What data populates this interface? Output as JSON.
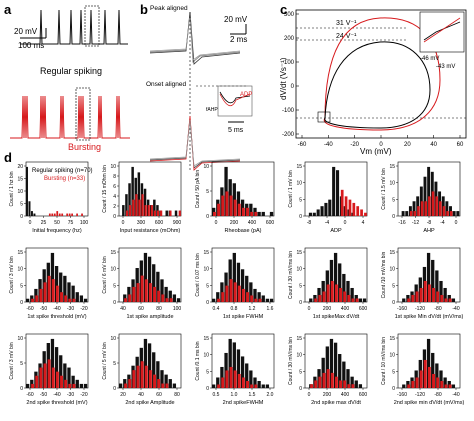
{
  "panels": {
    "a": {
      "letter": "a",
      "scale_v": "20 mV",
      "scale_t": "100 ms",
      "label_regular": "Regular spiking",
      "label_burst": "Bursting",
      "color_regular": "#111111",
      "color_burst": "#d7191c"
    },
    "b": {
      "letter": "b",
      "peak_label": "Peak aligned",
      "onset_label": "Onset aligned",
      "scale_v": "20 mV",
      "scale_t1": "2 ms",
      "scale_t2": "5 ms",
      "adp_label": "ADP",
      "fahp_label": "fAHP"
    },
    "c": {
      "letter": "c",
      "xlabel": "Vm (mV)",
      "ylabel": "dV/dt (Vs⁻¹)",
      "xticks": [
        "-60",
        "-40",
        "-20",
        "0",
        "20",
        "40",
        "60"
      ],
      "yticks": [
        "-200",
        "-100",
        "0",
        "100",
        "200",
        "300"
      ],
      "thr_red": "31 V⁻¹",
      "thr_black": "24 V⁻¹",
      "inset_v1": "-46 mV",
      "inset_v2": "-43 mV"
    },
    "d": {
      "letter": "d",
      "legend_regular": "Regular spiking (n=70)",
      "legend_burst": "Bursting (n=33)"
    }
  },
  "chart_data": [
    {
      "type": "bar",
      "id": "h1",
      "xlabel": "Initial frequency (hz)",
      "ylabel": "Count / 1 hz bin",
      "xticks": [
        "0",
        "25",
        "50",
        "75",
        "100"
      ],
      "yticks": [
        "0",
        "5",
        "10",
        "15",
        "20"
      ],
      "series": [
        {
          "name": "Regular spiking",
          "values": [
            20,
            6,
            2,
            1,
            0,
            0,
            0,
            0,
            0,
            0,
            0,
            0,
            0,
            0,
            0,
            0,
            0,
            0,
            0,
            0,
            0,
            0,
            0,
            0,
            0
          ]
        },
        {
          "name": "Bursting",
          "values": [
            0,
            0,
            0,
            0,
            0,
            0,
            0,
            0,
            0,
            1,
            1,
            1,
            2,
            1,
            1,
            0,
            1,
            1,
            1,
            0,
            1,
            0,
            1,
            0,
            0
          ]
        }
      ]
    },
    {
      "type": "bar",
      "id": "h2",
      "xlabel": "Input resistance (mOhm)",
      "ylabel": "Count / 15 mOhm bin",
      "xticks": [
        "0",
        "300",
        "600",
        "900"
      ],
      "yticks": [
        "0",
        "2",
        "4",
        "6",
        "8",
        "10"
      ],
      "series": [
        {
          "name": "Regular spiking",
          "values": [
            0,
            2,
            4,
            6,
            9,
            7,
            8,
            6,
            5,
            3,
            2,
            3,
            2,
            1,
            0,
            1,
            1,
            0,
            1,
            0
          ]
        },
        {
          "name": "Bursting",
          "values": [
            0,
            0,
            1,
            2,
            3,
            4,
            3,
            4,
            2,
            2,
            2,
            1,
            1,
            1,
            0,
            0,
            1,
            0,
            0,
            1
          ]
        }
      ]
    },
    {
      "type": "bar",
      "id": "h3",
      "xlabel": "Rheobase (pA)",
      "ylabel": "Count / 50 pA bin",
      "xticks": [
        "0",
        "200",
        "400",
        "600"
      ],
      "yticks": [
        "0",
        "5",
        "10"
      ],
      "series": [
        {
          "name": "Regular spiking",
          "values": [
            2,
            4,
            7,
            12,
            9,
            8,
            6,
            4,
            3,
            3,
            2,
            1,
            1,
            0,
            1
          ]
        },
        {
          "name": "Bursting",
          "values": [
            1,
            3,
            5,
            6,
            5,
            4,
            3,
            2,
            2,
            1,
            1,
            0,
            0,
            0,
            0
          ]
        }
      ]
    },
    {
      "type": "bar",
      "id": "h4",
      "xlabel": "ADP",
      "ylabel": "Count / 1 mV bin",
      "xticks": [
        "-8",
        "-4",
        "0",
        "4"
      ],
      "yticks": [
        "0",
        "5",
        "10",
        "15"
      ],
      "series": [
        {
          "name": "Regular spiking",
          "values": [
            0,
            1,
            1,
            2,
            3,
            4,
            5,
            15,
            14,
            6,
            3,
            2,
            1,
            0,
            0,
            0
          ]
        },
        {
          "name": "Bursting",
          "values": [
            0,
            0,
            0,
            0,
            0,
            0,
            0,
            0,
            0,
            8,
            6,
            5,
            4,
            3,
            2,
            1
          ]
        }
      ]
    },
    {
      "type": "bar",
      "id": "h5",
      "xlabel": "AHP",
      "ylabel": "Count / 1.5 mV bin",
      "xticks": [
        "-16",
        "-12",
        "-8",
        "-4",
        "0"
      ],
      "yticks": [
        "0",
        "5",
        "10",
        "15"
      ],
      "series": [
        {
          "name": "Regular spiking",
          "values": [
            0,
            1,
            1,
            2,
            3,
            4,
            6,
            8,
            10,
            9,
            7,
            5,
            4,
            3,
            2,
            1,
            1
          ]
        },
        {
          "name": "Bursting",
          "values": [
            0,
            0,
            0,
            1,
            1,
            2,
            3,
            3,
            4,
            5,
            4,
            3,
            2,
            1,
            1,
            0,
            0
          ]
        }
      ]
    },
    {
      "type": "bar",
      "id": "h6",
      "xlabel": "1st spike threshold (mV)",
      "ylabel": "Count / 3 mV bin",
      "xticks": [
        "-60",
        "-50",
        "-40",
        "-30",
        "-20"
      ],
      "yticks": [
        "0",
        "5",
        "10",
        "15"
      ],
      "series": [
        {
          "name": "Regular spiking",
          "values": [
            1,
            2,
            4,
            7,
            10,
            12,
            15,
            11,
            9,
            8,
            6,
            5,
            3,
            2,
            1
          ]
        },
        {
          "name": "Bursting",
          "values": [
            0,
            1,
            2,
            4,
            6,
            8,
            7,
            5,
            3,
            2,
            1,
            1,
            0,
            0,
            0
          ]
        }
      ]
    },
    {
      "type": "bar",
      "id": "h7",
      "xlabel": "1st spike amplitude",
      "ylabel": "Count / 6 mV bin",
      "xticks": [
        "40",
        "60",
        "80",
        "100"
      ],
      "yticks": [
        "0",
        "5",
        "10",
        "15"
      ],
      "series": [
        {
          "name": "Regular spiking",
          "values": [
            0,
            2,
            4,
            6,
            9,
            11,
            13,
            12,
            10,
            8,
            6,
            4,
            3,
            2,
            1
          ]
        },
        {
          "name": "Bursting",
          "values": [
            0,
            1,
            2,
            4,
            5,
            7,
            6,
            5,
            4,
            3,
            2,
            1,
            1,
            0,
            0
          ]
        }
      ]
    },
    {
      "type": "bar",
      "id": "h8",
      "xlabel": "1st spike FWHM",
      "ylabel": "Count / 0.07 ms bin",
      "xticks": [
        "0.4",
        "0.8",
        "1.2",
        "1.6"
      ],
      "yticks": [
        "0",
        "5",
        "10",
        "15"
      ],
      "series": [
        {
          "name": "Regular spiking",
          "values": [
            1,
            3,
            6,
            9,
            13,
            15,
            12,
            10,
            8,
            6,
            4,
            3,
            2,
            1,
            1
          ]
        },
        {
          "name": "Bursting",
          "values": [
            0,
            1,
            3,
            5,
            7,
            6,
            5,
            4,
            3,
            2,
            1,
            1,
            0,
            0,
            0
          ]
        }
      ]
    },
    {
      "type": "bar",
      "id": "h9",
      "xlabel": "1st spikeMax dV/dt",
      "ylabel": "Count / 30 mV/ms bin",
      "xticks": [
        "0",
        "200",
        "400",
        "600"
      ],
      "yticks": [
        "0",
        "5",
        "10",
        "15"
      ],
      "series": [
        {
          "name": "Regular spiking",
          "values": [
            0,
            1,
            2,
            4,
            6,
            9,
            12,
            14,
            11,
            8,
            6,
            4,
            2,
            1,
            1
          ]
        },
        {
          "name": "Bursting",
          "values": [
            0,
            0,
            1,
            2,
            3,
            5,
            6,
            5,
            4,
            3,
            2,
            1,
            1,
            0,
            0
          ]
        }
      ]
    },
    {
      "type": "bar",
      "id": "h10",
      "xlabel": "1st spike Min dV/dt (mV/ms)",
      "ylabel": "Count /10 mV/ms bin",
      "xticks": [
        "-160",
        "-120",
        "-80",
        "-40"
      ],
      "yticks": [
        "0",
        "5",
        "10",
        "15"
      ],
      "series": [
        {
          "name": "Regular spiking",
          "values": [
            0,
            1,
            2,
            3,
            5,
            7,
            10,
            14,
            12,
            9,
            6,
            4,
            2,
            1,
            0
          ]
        },
        {
          "name": "Bursting",
          "values": [
            0,
            0,
            1,
            2,
            3,
            4,
            6,
            5,
            4,
            3,
            2,
            1,
            1,
            0,
            0
          ]
        }
      ]
    },
    {
      "type": "bar",
      "id": "h11",
      "xlabel": "2nd spike threshold (mV)",
      "ylabel": "Count / 3 mV bin",
      "xticks": [
        "-60",
        "-50",
        "-40",
        "-30",
        "-20"
      ],
      "yticks": [
        "0",
        "5",
        "10"
      ],
      "series": [
        {
          "name": "Regular spiking",
          "values": [
            1,
            2,
            4,
            6,
            9,
            11,
            12,
            10,
            8,
            6,
            5,
            3,
            2,
            1,
            1
          ]
        },
        {
          "name": "Bursting",
          "values": [
            0,
            1,
            3,
            5,
            6,
            7,
            5,
            4,
            3,
            2,
            1,
            1,
            0,
            0,
            0
          ]
        }
      ]
    },
    {
      "type": "bar",
      "id": "h12",
      "xlabel": "2nd spike Amplitude",
      "ylabel": "Count / 5 mV bin",
      "xticks": [
        "20",
        "40",
        "60",
        "80"
      ],
      "yticks": [
        "0",
        "5",
        "10"
      ],
      "series": [
        {
          "name": "Regular spiking",
          "values": [
            1,
            2,
            3,
            5,
            7,
            9,
            11,
            10,
            8,
            6,
            4,
            3,
            2,
            1,
            0
          ]
        },
        {
          "name": "Bursting",
          "values": [
            0,
            1,
            2,
            4,
            5,
            6,
            5,
            4,
            3,
            2,
            1,
            1,
            0,
            0,
            0
          ]
        }
      ]
    },
    {
      "type": "bar",
      "id": "h13",
      "xlabel": "2nd spikeFWHM",
      "ylabel": "Count /0.1 ms bin",
      "xticks": [
        "0.5",
        "1.0",
        "1.5",
        "2.0"
      ],
      "yticks": [
        "0",
        "5",
        "10",
        "15"
      ],
      "series": [
        {
          "name": "Regular spiking",
          "values": [
            1,
            3,
            6,
            10,
            14,
            13,
            11,
            9,
            7,
            5,
            3,
            2,
            1,
            1,
            0
          ]
        },
        {
          "name": "Bursting",
          "values": [
            0,
            1,
            3,
            5,
            6,
            5,
            4,
            3,
            2,
            1,
            1,
            0,
            0,
            0,
            0
          ]
        }
      ]
    },
    {
      "type": "bar",
      "id": "h14",
      "xlabel": "2nd spike max dV/dt",
      "ylabel": "Count / 30 mV/ms bin",
      "xticks": [
        "0",
        "200",
        "400",
        "600"
      ],
      "yticks": [
        "0",
        "5",
        "10",
        "15"
      ],
      "series": [
        {
          "name": "Regular spiking",
          "values": [
            0,
            1,
            3,
            5,
            8,
            11,
            13,
            12,
            9,
            7,
            5,
            3,
            2,
            1,
            0
          ]
        },
        {
          "name": "Bursting",
          "values": [
            0,
            1,
            2,
            3,
            4,
            5,
            4,
            3,
            2,
            2,
            1,
            1,
            0,
            0,
            0
          ]
        }
      ]
    },
    {
      "type": "bar",
      "id": "h15",
      "xlabel": "2nd spike min dV/dt (mV/ms)",
      "ylabel": "Count / 10 mV/ms bin",
      "xticks": [
        "-160",
        "-120",
        "-80",
        "-40"
      ],
      "yticks": [
        "0",
        "5",
        "10",
        "15"
      ],
      "series": [
        {
          "name": "Regular spiking",
          "values": [
            0,
            1,
            2,
            3,
            5,
            8,
            11,
            14,
            10,
            7,
            5,
            3,
            2,
            1,
            0
          ]
        },
        {
          "name": "Bursting",
          "values": [
            0,
            0,
            1,
            2,
            3,
            5,
            8,
            6,
            4,
            3,
            2,
            1,
            1,
            0,
            0
          ]
        }
      ]
    }
  ]
}
